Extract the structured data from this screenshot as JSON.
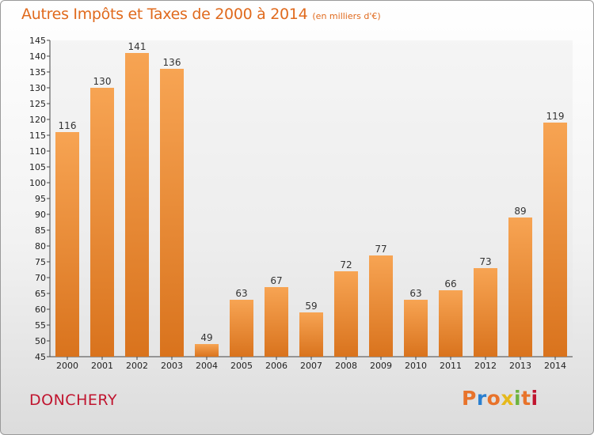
{
  "chart_data": {
    "type": "bar",
    "title": "Autres Impôts et Taxes de 2000 à 2014",
    "subtitle": "(en milliers d'€)",
    "categories": [
      "2000",
      "2001",
      "2002",
      "2003",
      "2004",
      "2005",
      "2006",
      "2007",
      "2008",
      "2009",
      "2010",
      "2011",
      "2012",
      "2013",
      "2014"
    ],
    "values": [
      116,
      130,
      141,
      136,
      49,
      63,
      67,
      59,
      72,
      77,
      63,
      66,
      73,
      89,
      119
    ],
    "ylim": [
      45,
      145
    ],
    "ytick_step": 5,
    "grid": false,
    "colors": {
      "bar_light": "#f7a453",
      "bar_dark": "#d9731d",
      "title": "#e06a1d"
    }
  },
  "footer": {
    "place": "DONCHERY",
    "logo": "Proxiti"
  },
  "logo_colors": [
    "#e8732b",
    "#2a7fd0",
    "#e8732b",
    "#e5b91c",
    "#6db33f",
    "#e8732b",
    "#c0152f"
  ]
}
